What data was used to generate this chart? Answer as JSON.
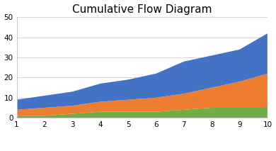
{
  "title": "Cumulative Flow Diagram",
  "x": [
    1,
    2,
    3,
    4,
    5,
    6,
    7,
    8,
    9,
    10
  ],
  "done": [
    1,
    1,
    2,
    3,
    3,
    3,
    4,
    5,
    5,
    5
  ],
  "in_progress": [
    3,
    4,
    4,
    5,
    6,
    7,
    8,
    10,
    13,
    17
  ],
  "to_do": [
    5,
    6,
    7,
    9,
    10,
    12,
    16,
    16,
    16,
    20
  ],
  "color_done": "#70ad47",
  "color_in_progress": "#ed7d31",
  "color_to_do": "#4472c4",
  "ylim": [
    0,
    50
  ],
  "yticks": [
    0,
    10,
    20,
    30,
    40,
    50
  ],
  "xlim": [
    1,
    10
  ],
  "xticks": [
    1,
    2,
    3,
    4,
    5,
    6,
    7,
    8,
    9,
    10
  ],
  "title_fontsize": 11,
  "legend_fontsize": 7.5,
  "tick_fontsize": 7.5,
  "background_color": "#ffffff"
}
